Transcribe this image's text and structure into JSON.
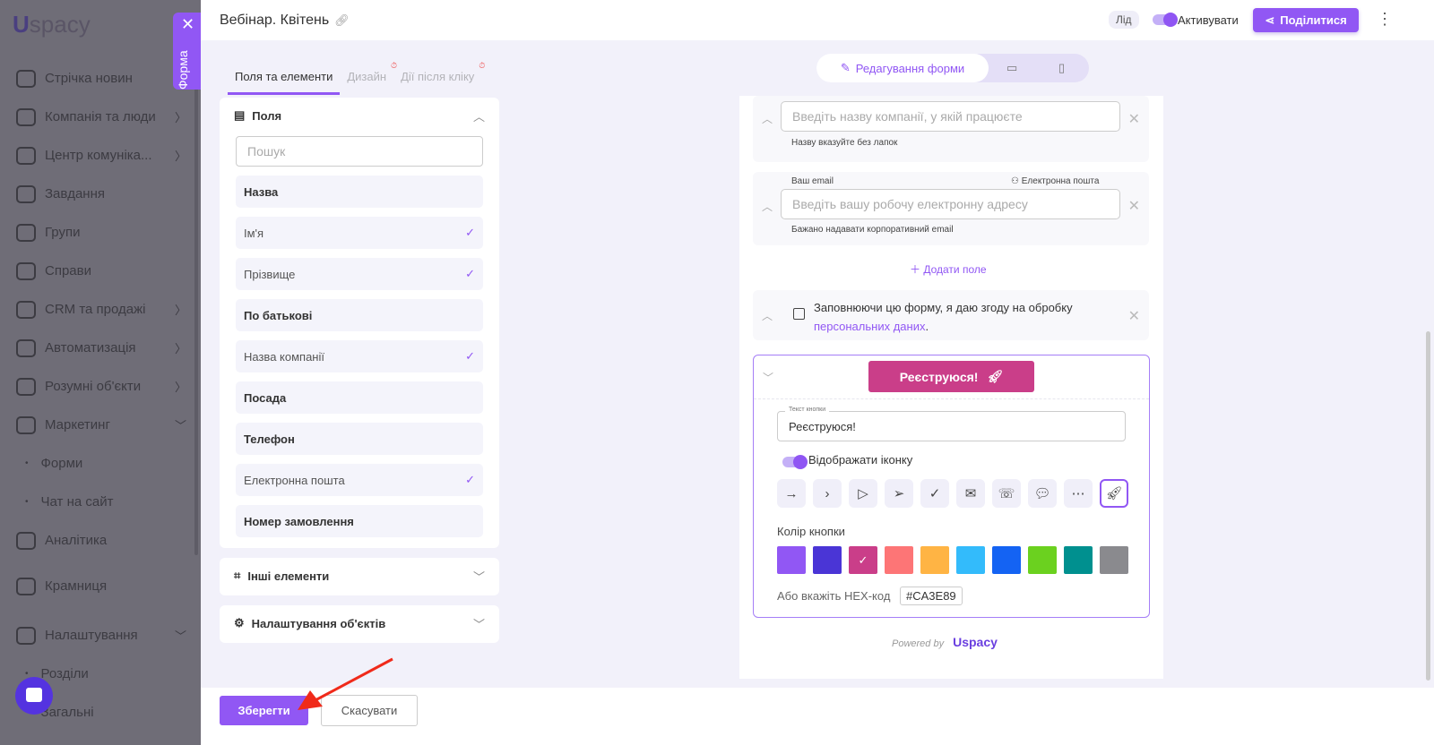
{
  "sidebar": {
    "logo": "spacy",
    "items": [
      {
        "label": "Стрічка новин",
        "chevron": false
      },
      {
        "label": "Компанія та люди",
        "chevron": true
      },
      {
        "label": "Центр комуніка...",
        "chevron": true
      },
      {
        "label": "Завдання",
        "chevron": false
      },
      {
        "label": "Групи",
        "chevron": false
      },
      {
        "label": "Справи",
        "chevron": false
      },
      {
        "label": "CRM та продажі",
        "chevron": true
      },
      {
        "label": "Автоматизація",
        "chevron": true
      },
      {
        "label": "Розумні об'єкти",
        "chevron": true
      },
      {
        "label": "Маркетинг",
        "chevron": true
      },
      {
        "label": "Форми",
        "sub": true
      },
      {
        "label": "Чат на сайт",
        "sub": true
      },
      {
        "label": "Аналітика"
      },
      {
        "label": "Крамниця"
      },
      {
        "label": "Налаштування",
        "chevron": true
      },
      {
        "label": "Розділи",
        "sub": true
      },
      {
        "label": "Загальні",
        "sub": true
      }
    ]
  },
  "form_tab": {
    "label": "Форма"
  },
  "header": {
    "title": "Вебінар. Квітень",
    "badge": "Лід",
    "activate": "Активувати",
    "share": "Поділитися"
  },
  "tabs": [
    "Поля та елементи",
    "Дизайн",
    "Дії після кліку"
  ],
  "fields_panel": {
    "title": "Поля",
    "search_placeholder": "Пошук",
    "items": [
      {
        "label": "Назва",
        "checked": false
      },
      {
        "label": "Ім'я",
        "checked": true
      },
      {
        "label": "Прізвище",
        "checked": true
      },
      {
        "label": "По батькові",
        "checked": false
      },
      {
        "label": "Назва компанії",
        "checked": true
      },
      {
        "label": "Посада",
        "checked": false
      },
      {
        "label": "Телефон",
        "checked": false
      },
      {
        "label": "Електронна пошта",
        "checked": true
      },
      {
        "label": "Номер замовлення",
        "checked": false
      }
    ]
  },
  "other_panel": {
    "title": "Інші елементи"
  },
  "objects_panel": {
    "title": "Налаштування об'єктів"
  },
  "mode": {
    "edit": "Редагування форми"
  },
  "form": {
    "company_placeholder": "Введіть назву компанії, у якій працюєте",
    "company_hint": "Назву вказуйте без лапок",
    "email_label": "Ваш email",
    "email_type": "Електронна пошта",
    "email_placeholder": "Введіть вашу робочу електронну адресу",
    "email_hint": "Бажано надавати корпоративний email",
    "add_field": "Додати поле",
    "consent_text": "Заповнюючи цю форму, я даю згоду на обробку",
    "consent_link": "персональних даних",
    "button_label": "Реєструюся!",
    "button_text_legend": "Текст кнопки",
    "button_text_value": "Реєструюся!",
    "show_icon": "Відображати іконку",
    "show_icon_on": true,
    "icons": [
      "arrow-right",
      "chevron-right",
      "send",
      "paper-plane",
      "check",
      "mail",
      "phone-incoming",
      "chat",
      "chat-dots",
      "rocket"
    ],
    "selected_icon": "rocket",
    "color_label": "Колір кнопки",
    "colors": [
      "#9157f4",
      "#4a35d6",
      "#ca3e89",
      "#fd7576",
      "#ffb444",
      "#33bbfb",
      "#1463f3",
      "#6bd11f",
      "#00908f",
      "#8a8a8e"
    ],
    "selected_color": "#ca3e89",
    "hex_label": "Або вкажіть HEX-код",
    "hex_value": "#CA3E89",
    "powered": "Powered by",
    "powered_logo": "spacy"
  },
  "footer": {
    "save": "Зберегти",
    "cancel": "Скасувати"
  }
}
